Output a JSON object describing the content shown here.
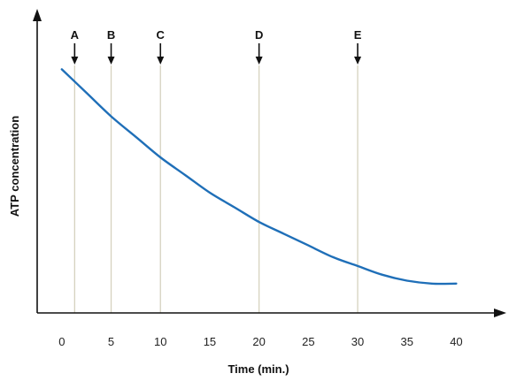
{
  "chart_data": {
    "type": "line",
    "xlabel": "Time (min.)",
    "ylabel": "ATP concentration",
    "xlim": [
      -2.5,
      44
    ],
    "ylim": [
      0,
      1
    ],
    "x_ticks": [
      "0",
      "5",
      "10",
      "15",
      "20",
      "25",
      "30",
      "35",
      "40"
    ],
    "y_ticks_shown": false,
    "grid": false,
    "series": [
      {
        "color": "#1f6fb8",
        "x": [
          0,
          2.5,
          5,
          7.5,
          10,
          12.5,
          15,
          17.5,
          20,
          22.5,
          25,
          27.5,
          30,
          32.5,
          35,
          37.5,
          40
        ],
        "y": [
          0.83,
          0.75,
          0.67,
          0.6,
          0.53,
          0.47,
          0.41,
          0.36,
          0.31,
          0.27,
          0.23,
          0.19,
          0.16,
          0.13,
          0.11,
          0.1,
          0.1
        ]
      }
    ],
    "markers": [
      {
        "label": "A",
        "x": 1.3
      },
      {
        "label": "B",
        "x": 5
      },
      {
        "label": "C",
        "x": 10
      },
      {
        "label": "D",
        "x": 20
      },
      {
        "label": "E",
        "x": 30
      }
    ],
    "colors": {
      "curve": "#1f6fb8",
      "marker_line": "#d6d2bf",
      "axis": "#111111"
    }
  }
}
